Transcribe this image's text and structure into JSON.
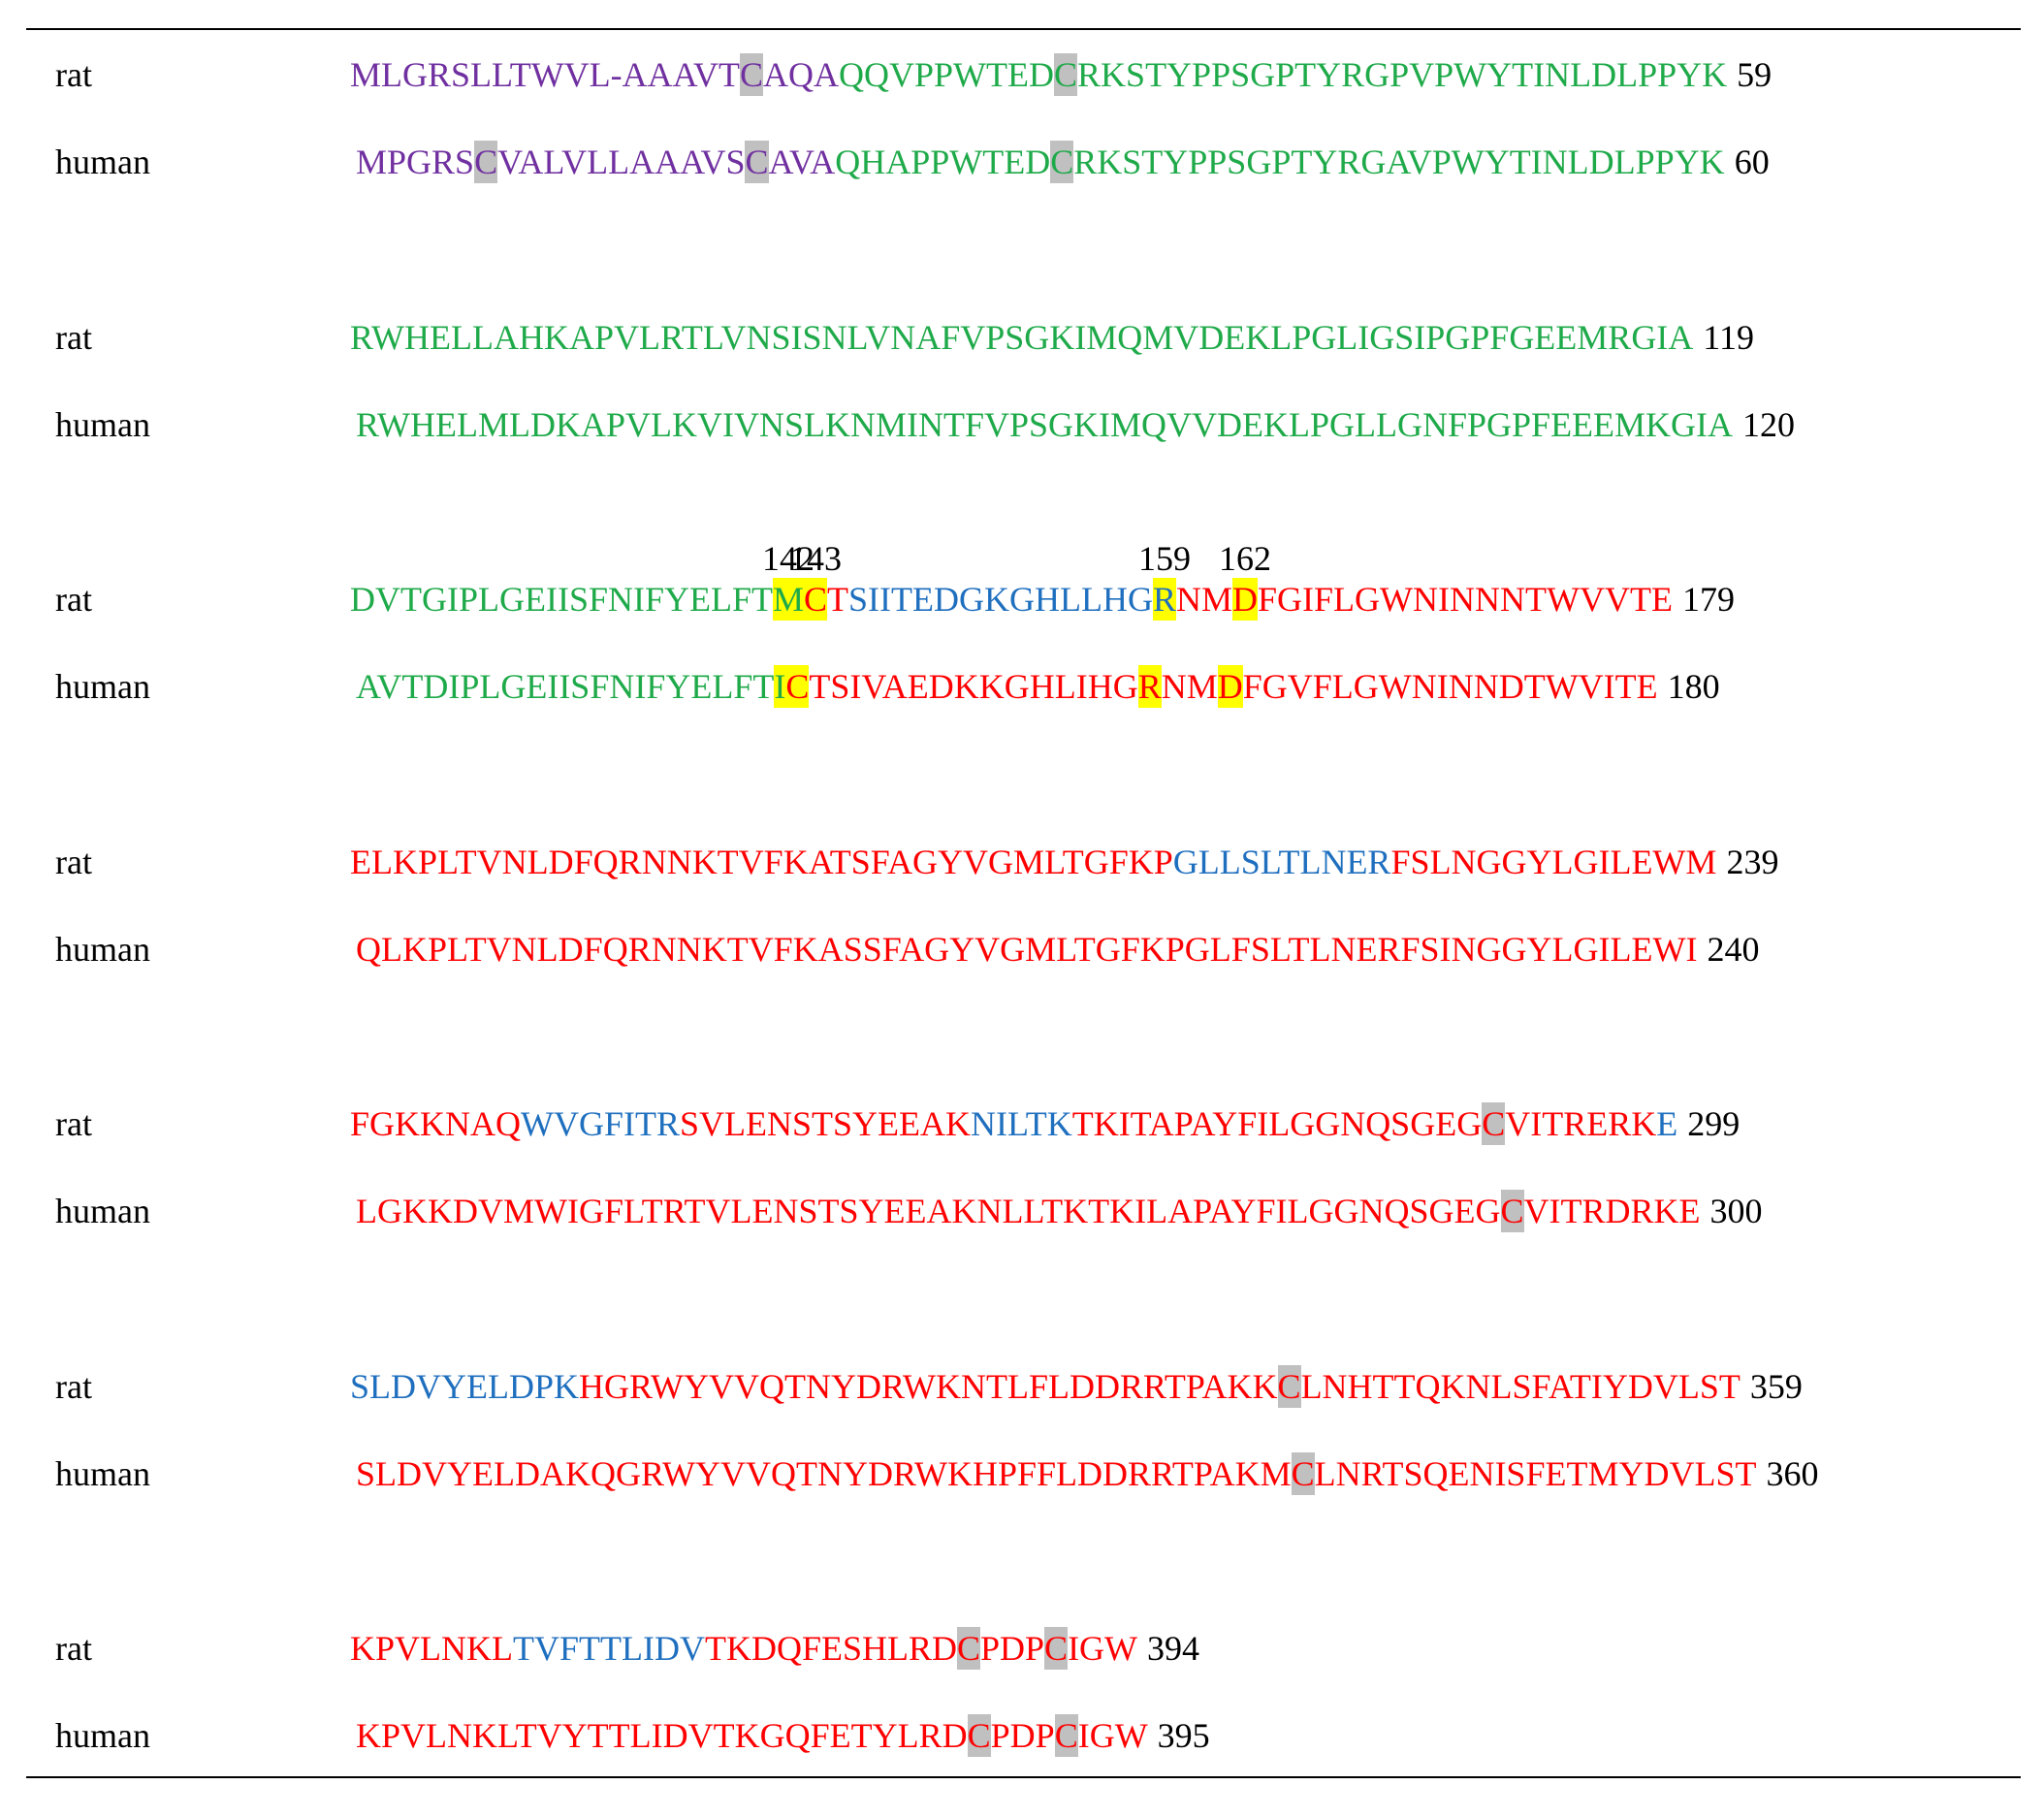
{
  "blocks": [
    {
      "rows": [
        {
          "species": "rat",
          "end": "59",
          "segments": [
            {
              "text": "MLGRSLLTWVL-AAAVT",
              "color": "#7030a0"
            },
            {
              "text": "C",
              "color": "#7030a0",
              "highlight": "#c0c0c0"
            },
            {
              "text": "AQA",
              "color": "#7030a0"
            },
            {
              "text": "QQVPPWTED",
              "color": "#1faa4a"
            },
            {
              "text": "C",
              "color": "#1faa4a",
              "highlight": "#c0c0c0"
            },
            {
              "text": "RKSTYPPSGPTYRGPVPWYTINLDLPPYK",
              "color": "#1faa4a"
            }
          ]
        },
        {
          "species": "human",
          "end": "60",
          "segments": [
            {
              "text": "MPGRS",
              "color": "#7030a0"
            },
            {
              "text": "C",
              "color": "#7030a0",
              "highlight": "#c0c0c0"
            },
            {
              "text": "VALVLLAAAVS",
              "color": "#7030a0"
            },
            {
              "text": "C",
              "color": "#7030a0",
              "highlight": "#c0c0c0"
            },
            {
              "text": "AVA",
              "color": "#7030a0"
            },
            {
              "text": "QHAPPWTED",
              "color": "#1faa4a"
            },
            {
              "text": "C",
              "color": "#1faa4a",
              "highlight": "#c0c0c0"
            },
            {
              "text": "RKSTYPPSGPTYRGAVPWYTINLDLPPYK",
              "color": "#1faa4a"
            }
          ]
        }
      ]
    },
    {
      "rows": [
        {
          "species": "rat",
          "end": "119",
          "segments": [
            {
              "text": "RWHELLAHKAPVLRTLVNSISNLVNAFVPSGKIMQMVDEKLPGLIGSIPGPFGEEMRGIA",
              "color": "#1faa4a"
            }
          ]
        },
        {
          "species": "human",
          "end": "120",
          "segments": [
            {
              "text": "RWHELMLDKAPVLKVIVNSLKNMINTFVPSGKIMQVVDEKLPGLLGNFPGPFEEEMKGIA",
              "color": "#1faa4a"
            }
          ]
        }
      ]
    },
    {
      "rows": [
        {
          "species": "rat",
          "end": "179",
          "segments": [
            {
              "text": "DVTGIPLGEIISFNIFYELFT",
              "color": "#1faa4a"
            },
            {
              "text": "M",
              "color": "#1faa4a",
              "highlight": "#ffff00",
              "label": "142"
            },
            {
              "text": "C",
              "color": "#ff0000",
              "highlight": "#ffff00",
              "label": "143"
            },
            {
              "text": "T",
              "color": "#ff0000"
            },
            {
              "text": "SIITEDGKGHLLHG",
              "color": "#1f6fbf"
            },
            {
              "text": "R",
              "color": "#1f6fbf",
              "highlight": "#ffff00",
              "label": "159"
            },
            {
              "text": "NM",
              "color": "#ff0000"
            },
            {
              "text": "D",
              "color": "#ff0000",
              "highlight": "#ffff00",
              "label": "162"
            },
            {
              "text": "FGIFLGWNINNNTWVVTE",
              "color": "#ff0000"
            }
          ]
        },
        {
          "species": "human",
          "end": "180",
          "segments": [
            {
              "text": "AVTDIPLGEIISFNIFYELFT",
              "color": "#1faa4a"
            },
            {
              "text": "I",
              "color": "#1faa4a",
              "highlight": "#ffff00"
            },
            {
              "text": "C",
              "color": "#ff0000",
              "highlight": "#ffff00"
            },
            {
              "text": "TSIVAEDKKGHLIHG",
              "color": "#ff0000"
            },
            {
              "text": "R",
              "color": "#ff0000",
              "highlight": "#ffff00"
            },
            {
              "text": "NM",
              "color": "#ff0000"
            },
            {
              "text": "D",
              "color": "#ff0000",
              "highlight": "#ffff00"
            },
            {
              "text": "FGVFLGWNINNDTWVITE",
              "color": "#ff0000"
            }
          ]
        }
      ]
    },
    {
      "rows": [
        {
          "species": "rat",
          "end": "239",
          "segments": [
            {
              "text": "ELKPLTVNLDFQRNNKTVFKATSFAGYVGMLTGFKP",
              "color": "#ff0000"
            },
            {
              "text": "GLLSLTLNER",
              "color": "#1f6fbf"
            },
            {
              "text": "FSLNGGYLGILEWM",
              "color": "#ff0000"
            }
          ]
        },
        {
          "species": "human",
          "end": "240",
          "segments": [
            {
              "text": "QLKPLTVNLDFQRNNKTVFKASSFAGYVGMLTGFKPGLFSLTLNERFSINGGYLGILEWI",
              "color": "#ff0000"
            }
          ]
        }
      ]
    },
    {
      "rows": [
        {
          "species": "rat",
          "end": "299",
          "segments": [
            {
              "text": "FGKKNAQ",
              "color": "#ff0000"
            },
            {
              "text": "WVGFITR",
              "color": "#1f6fbf"
            },
            {
              "text": "SVLENSTSYEEAK",
              "color": "#ff0000"
            },
            {
              "text": "NILTK",
              "color": "#1f6fbf"
            },
            {
              "text": "TKITAPAYFILGGNQSGEG",
              "color": "#ff0000"
            },
            {
              "text": "C",
              "color": "#ff0000",
              "highlight": "#c0c0c0"
            },
            {
              "text": "VITRERK",
              "color": "#ff0000"
            },
            {
              "text": "E",
              "color": "#1f6fbf"
            }
          ]
        },
        {
          "species": "human",
          "end": "300",
          "segments": [
            {
              "text": "LGKKDVMWIGFLTRTVLENSTSYEEAKNLLTKTKILAPAYFILGGNQSGEG",
              "color": "#ff0000"
            },
            {
              "text": "C",
              "color": "#ff0000",
              "highlight": "#c0c0c0"
            },
            {
              "text": "VITRDRKE",
              "color": "#ff0000"
            }
          ]
        }
      ]
    },
    {
      "rows": [
        {
          "species": "rat",
          "end": "359",
          "segments": [
            {
              "text": "SLDVYELDPK",
              "color": "#1f6fbf"
            },
            {
              "text": "HGRWYVVQTNYDRWKNTLFLDDRRTPAKK",
              "color": "#ff0000"
            },
            {
              "text": "C",
              "color": "#ff0000",
              "highlight": "#c0c0c0"
            },
            {
              "text": "LNHTTQKNLSFATIYDVLST",
              "color": "#ff0000"
            }
          ]
        },
        {
          "species": "human",
          "end": "360",
          "segments": [
            {
              "text": "SLDVYELDAKQGRWYVVQTNYDRWKHPFFLDDRRTPAKM",
              "color": "#ff0000"
            },
            {
              "text": "C",
              "color": "#ff0000",
              "highlight": "#c0c0c0"
            },
            {
              "text": "LNRTSQENISFETMYDVLST",
              "color": "#ff0000"
            }
          ]
        }
      ]
    },
    {
      "rows": [
        {
          "species": "rat",
          "end": "394",
          "segments": [
            {
              "text": "KPVLNKL",
              "color": "#ff0000"
            },
            {
              "text": "TVFTTLIDV",
              "color": "#1f6fbf"
            },
            {
              "text": "TKDQFESHLRD",
              "color": "#ff0000"
            },
            {
              "text": "C",
              "color": "#ff0000",
              "highlight": "#c0c0c0"
            },
            {
              "text": "PDP",
              "color": "#ff0000"
            },
            {
              "text": "C",
              "color": "#ff0000",
              "highlight": "#c0c0c0"
            },
            {
              "text": "IGW",
              "color": "#ff0000"
            }
          ]
        },
        {
          "species": "human",
          "end": "395",
          "segments": [
            {
              "text": "KPVLNKLTVYTTLIDVTKGQFETYLRD",
              "color": "#ff0000"
            },
            {
              "text": "C",
              "color": "#ff0000",
              "highlight": "#c0c0c0"
            },
            {
              "text": "PDP",
              "color": "#ff0000"
            },
            {
              "text": "C",
              "color": "#ff0000",
              "highlight": "#c0c0c0"
            },
            {
              "text": "IGW",
              "color": "#ff0000"
            }
          ]
        }
      ]
    }
  ]
}
